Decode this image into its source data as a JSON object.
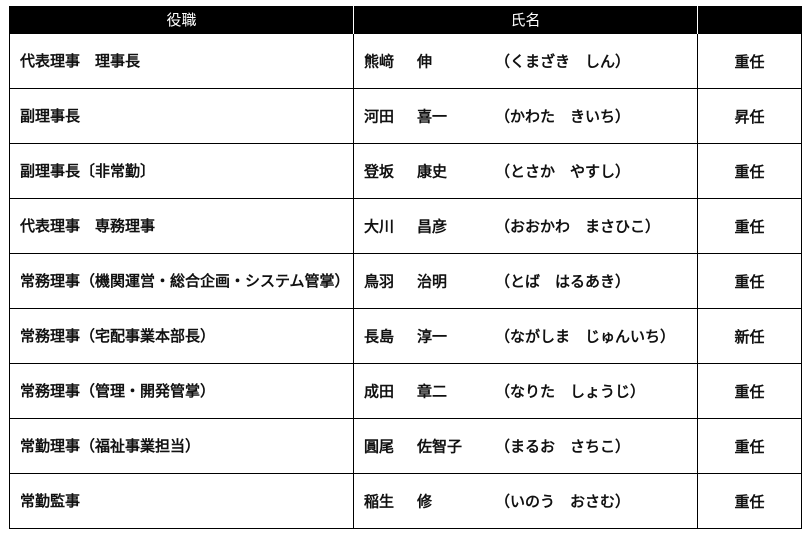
{
  "headers": [
    "役職",
    "氏名",
    ""
  ],
  "rows": [
    {
      "role": "代表理事　理事長",
      "surname": "熊﨑",
      "given": "伸",
      "reading": "（くまざき　しん）",
      "status": "重任"
    },
    {
      "role": "副理事長",
      "surname": "河田",
      "given": "喜一",
      "reading": "（かわた　きいち）",
      "status": "昇任"
    },
    {
      "role": "副理事長〔非常勤〕",
      "surname": "登坂",
      "given": "康史",
      "reading": "（とさか　やすし）",
      "status": "重任"
    },
    {
      "role": "代表理事　専務理事",
      "surname": "大川",
      "given": "昌彦",
      "reading": "（おおかわ　まさひこ）",
      "status": "重任"
    },
    {
      "role": "常務理事（機関運営・総合企画・システム管掌）",
      "surname": "鳥羽",
      "given": "治明",
      "reading": "（とば　はるあき）",
      "status": "重任"
    },
    {
      "role": "常務理事（宅配事業本部長）",
      "surname": "長島",
      "given": "淳一",
      "reading": "（ながしま　じゅんいち）",
      "status": "新任"
    },
    {
      "role": "常務理事（管理・開発管掌）",
      "surname": "成田",
      "given": "章二",
      "reading": "（なりた　しょうじ）",
      "status": "重任"
    },
    {
      "role": "常勤理事（福祉事業担当）",
      "surname": "圓尾",
      "given": "佐智子",
      "reading": "（まるお　さちこ）",
      "status": "重任"
    },
    {
      "role": "常勤監事",
      "surname": "稲生",
      "given": "修",
      "reading": "（いのう　おさむ）",
      "status": "重任"
    }
  ]
}
